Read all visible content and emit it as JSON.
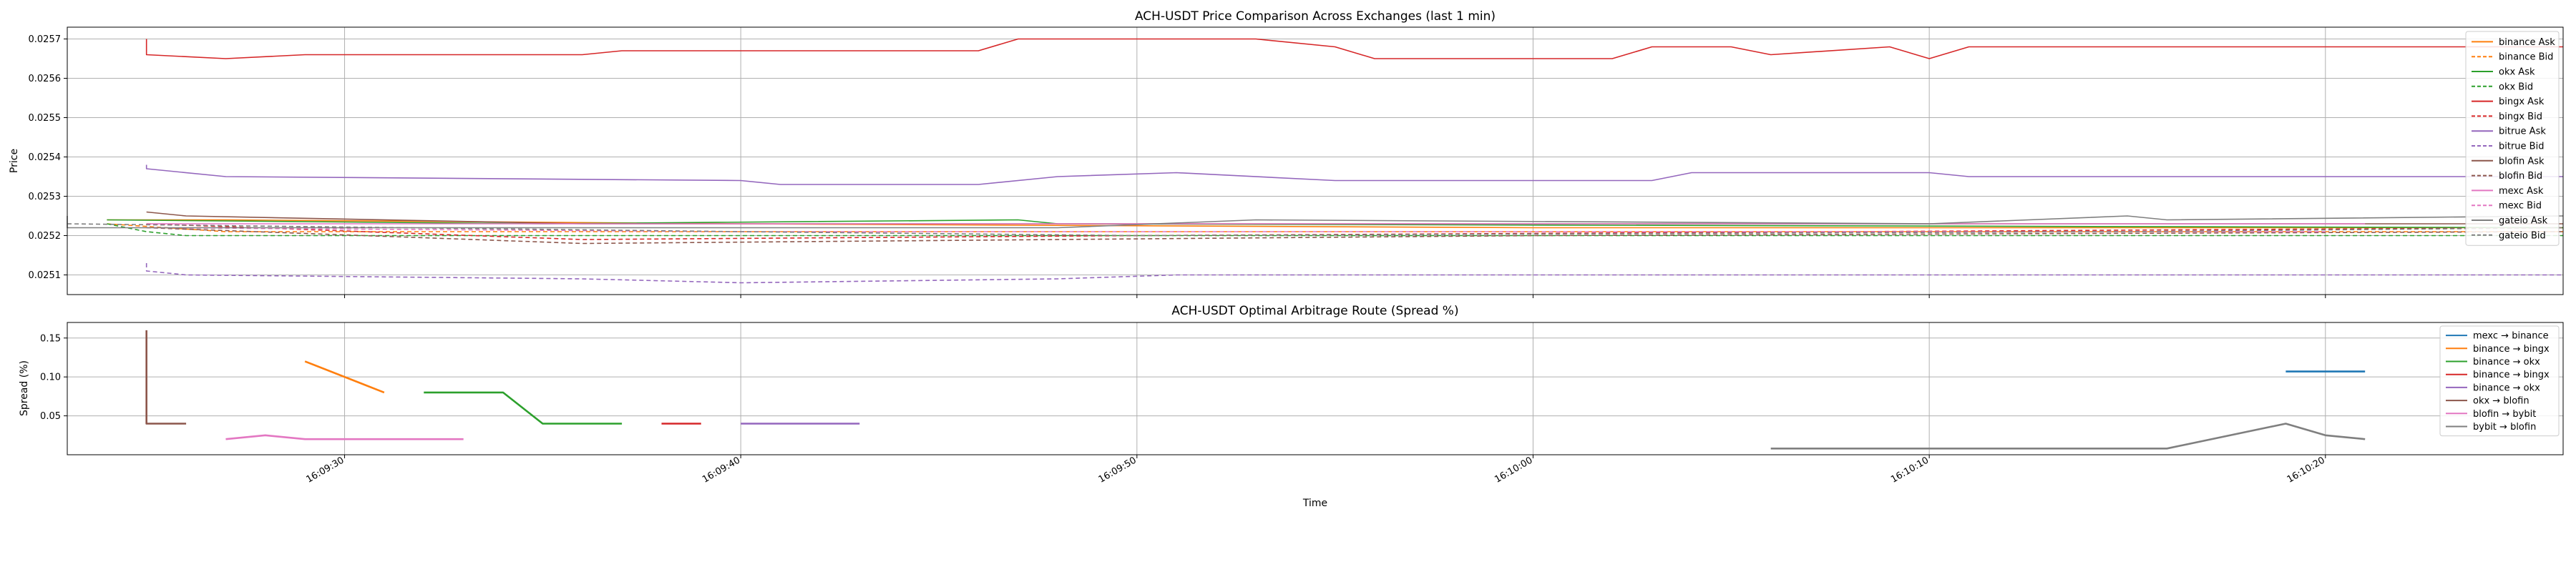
{
  "figure": {
    "x_axis_label": "Time"
  },
  "time_axis": {
    "ticks": [
      "16:09:30",
      "16:09:40",
      "16:09:50",
      "16:10:00",
      "16:10:10",
      "16:10:20"
    ],
    "range": [
      "16:09:23",
      "16:10:26"
    ]
  },
  "chart_data": [
    {
      "type": "line",
      "title": "ACH-USDT Price Comparison Across Exchanges (last 1 min)",
      "xlabel": "Time",
      "ylabel": "Price",
      "ylim": [
        0.02505,
        0.02573
      ],
      "yticks": [
        "0.0251",
        "0.0252",
        "0.0253",
        "0.0254",
        "0.0255",
        "0.0256",
        "0.0257"
      ],
      "ytick_values": [
        0.0251,
        0.0252,
        0.0253,
        0.0254,
        0.0255,
        0.0256,
        0.0257
      ],
      "grid": true,
      "legend_position": "right",
      "series": [
        {
          "name": "binance Ask",
          "color": "#ff7f0e",
          "dash": false,
          "points": [
            [
              "16:09:24",
              0.02524
            ],
            [
              "16:09:27",
              0.02524
            ],
            [
              "16:09:40",
              0.02523
            ],
            [
              "16:10:00",
              0.02522
            ],
            [
              "16:10:26",
              0.02522
            ]
          ]
        },
        {
          "name": "binance Bid",
          "color": "#ff7f0e",
          "dash": true,
          "points": [
            [
              "16:09:24",
              0.02523
            ],
            [
              "16:09:27",
              0.02521
            ],
            [
              "16:09:37",
              0.02521
            ],
            [
              "16:10:00",
              0.02521
            ],
            [
              "16:10:26",
              0.02521
            ]
          ]
        },
        {
          "name": "okx Ask",
          "color": "#2ca02c",
          "dash": false,
          "points": [
            [
              "16:09:24",
              0.02524
            ],
            [
              "16:09:35",
              0.02523
            ],
            [
              "16:09:47",
              0.02524
            ],
            [
              "16:09:48",
              0.02523
            ],
            [
              "16:10:26",
              0.02522
            ]
          ]
        },
        {
          "name": "okx Bid",
          "color": "#2ca02c",
          "dash": true,
          "points": [
            [
              "16:09:24",
              0.02523
            ],
            [
              "16:09:25",
              0.02521
            ],
            [
              "16:09:26",
              0.0252
            ],
            [
              "16:09:40",
              0.0252
            ],
            [
              "16:10:00",
              0.0252
            ],
            [
              "16:10:26",
              0.0252
            ]
          ]
        },
        {
          "name": "bingx Ask",
          "color": "#d62728",
          "dash": false,
          "points": [
            [
              "16:09:25",
              0.0257
            ],
            [
              "16:09:25",
              0.02566
            ],
            [
              "16:09:27",
              0.02565
            ],
            [
              "16:09:29",
              0.02566
            ],
            [
              "16:09:36",
              0.02566
            ],
            [
              "16:09:37",
              0.02567
            ],
            [
              "16:09:46",
              0.02567
            ],
            [
              "16:09:47",
              0.0257
            ],
            [
              "16:09:53",
              0.0257
            ],
            [
              "16:09:55",
              0.02568
            ],
            [
              "16:09:56",
              0.02565
            ],
            [
              "16:10:02",
              0.02565
            ],
            [
              "16:10:03",
              0.02568
            ],
            [
              "16:10:05",
              0.02568
            ],
            [
              "16:10:06",
              0.02566
            ],
            [
              "16:10:09",
              0.02568
            ],
            [
              "16:10:10",
              0.02565
            ],
            [
              "16:10:11",
              0.02568
            ],
            [
              "16:10:26",
              0.02568
            ]
          ]
        },
        {
          "name": "bingx Bid",
          "color": "#d62728",
          "dash": true,
          "points": [
            [
              "16:09:25",
              0.02523
            ],
            [
              "16:09:36",
              0.02519
            ],
            [
              "16:09:50",
              0.0252
            ],
            [
              "16:10:26",
              0.02522
            ]
          ]
        },
        {
          "name": "bitrue Ask",
          "color": "#9467bd",
          "dash": false,
          "points": [
            [
              "16:09:25",
              0.02538
            ],
            [
              "16:09:25",
              0.02537
            ],
            [
              "16:09:27",
              0.02535
            ],
            [
              "16:09:40",
              0.02534
            ],
            [
              "16:09:41",
              0.02533
            ],
            [
              "16:09:46",
              0.02533
            ],
            [
              "16:09:48",
              0.02535
            ],
            [
              "16:09:51",
              0.02536
            ],
            [
              "16:09:55",
              0.02534
            ],
            [
              "16:10:03",
              0.02534
            ],
            [
              "16:10:04",
              0.02536
            ],
            [
              "16:10:10",
              0.02536
            ],
            [
              "16:10:11",
              0.02535
            ],
            [
              "16:10:26",
              0.02535
            ]
          ]
        },
        {
          "name": "bitrue Bid",
          "color": "#9467bd",
          "dash": true,
          "points": [
            [
              "16:09:25",
              0.02513
            ],
            [
              "16:09:25",
              0.02511
            ],
            [
              "16:09:26",
              0.0251
            ],
            [
              "16:09:36",
              0.02509
            ],
            [
              "16:09:40",
              0.02508
            ],
            [
              "16:09:48",
              0.02509
            ],
            [
              "16:09:51",
              0.0251
            ],
            [
              "16:10:04",
              0.0251
            ],
            [
              "16:10:26",
              0.0251
            ]
          ]
        },
        {
          "name": "blofin Ask",
          "color": "#8c564b",
          "dash": false,
          "points": [
            [
              "16:09:25",
              0.02526
            ],
            [
              "16:09:26",
              0.02525
            ],
            [
              "16:09:36",
              0.02523
            ],
            [
              "16:10:26",
              0.02523
            ]
          ]
        },
        {
          "name": "blofin Bid",
          "color": "#8c564b",
          "dash": true,
          "points": [
            [
              "16:09:25",
              0.02522
            ],
            [
              "16:09:36",
              0.02518
            ],
            [
              "16:10:00",
              0.0252
            ],
            [
              "16:10:26",
              0.02521
            ]
          ]
        },
        {
          "name": "mexc Ask",
          "color": "#e377c2",
          "dash": false,
          "points": [
            [
              "16:09:25",
              0.02523
            ],
            [
              "16:09:30",
              0.02523
            ],
            [
              "16:10:00",
              0.02523
            ],
            [
              "16:10:21",
              0.02523
            ]
          ]
        },
        {
          "name": "mexc Bid",
          "color": "#e377c2",
          "dash": true,
          "points": [
            [
              "16:09:25",
              0.02522
            ],
            [
              "16:09:40",
              0.02521
            ],
            [
              "16:10:20",
              0.02521
            ]
          ]
        },
        {
          "name": "gateio Ask",
          "color": "#7f7f7f",
          "dash": false,
          "points": [
            [
              "16:09:23",
              0.02525
            ],
            [
              "16:09:23",
              0.02522
            ],
            [
              "16:09:36",
              0.02522
            ],
            [
              "16:09:48",
              0.02522
            ],
            [
              "16:09:53",
              0.02524
            ],
            [
              "16:10:10",
              0.02523
            ],
            [
              "16:10:15",
              0.02525
            ],
            [
              "16:10:16",
              0.02524
            ],
            [
              "16:10:26",
              0.02525
            ]
          ]
        },
        {
          "name": "gateio Bid",
          "color": "#7f7f7f",
          "dash": true,
          "points": [
            [
              "16:09:23",
              0.02523
            ],
            [
              "16:09:40",
              0.02521
            ],
            [
              "16:09:50",
              0.0252
            ],
            [
              "16:10:15",
              0.02521
            ],
            [
              "16:10:26",
              0.02522
            ]
          ]
        }
      ]
    },
    {
      "type": "line",
      "title": "ACH-USDT Optimal Arbitrage Route (Spread %)",
      "xlabel": "Time",
      "ylabel": "Spread (%)",
      "ylim": [
        0.0,
        0.17
      ],
      "yticks": [
        "0.05",
        "0.10",
        "0.15"
      ],
      "ytick_values": [
        0.05,
        0.1,
        0.15
      ],
      "grid": true,
      "legend_position": "top-right",
      "series": [
        {
          "name": "mexc → binance",
          "color": "#1f77b4",
          "dash": false,
          "points": [
            [
              "16:10:19",
              0.107
            ],
            [
              "16:10:21",
              0.107
            ]
          ]
        },
        {
          "name": "binance → bingx",
          "color": "#ff7f0e",
          "dash": false,
          "points": [
            [
              "16:09:29",
              0.12
            ],
            [
              "16:09:31",
              0.08
            ]
          ]
        },
        {
          "name": "binance → okx",
          "color": "#2ca02c",
          "dash": false,
          "points": [
            [
              "16:09:32",
              0.08
            ],
            [
              "16:09:34",
              0.08
            ],
            [
              "16:09:35",
              0.04
            ],
            [
              "16:09:37",
              0.04
            ]
          ]
        },
        {
          "name": "binance → bingx",
          "color": "#d62728",
          "dash": false,
          "points": [
            [
              "16:09:38",
              0.04
            ],
            [
              "16:09:39",
              0.04
            ]
          ]
        },
        {
          "name": "binance → okx",
          "color": "#9467bd",
          "dash": false,
          "points": [
            [
              "16:09:40",
              0.04
            ],
            [
              "16:09:43",
              0.04
            ]
          ]
        },
        {
          "name": "okx → blofin",
          "color": "#8c564b",
          "dash": false,
          "points": [
            [
              "16:09:25",
              0.16
            ],
            [
              "16:09:25",
              0.04
            ],
            [
              "16:09:26",
              0.04
            ]
          ]
        },
        {
          "name": "blofin → bybit",
          "color": "#e377c2",
          "dash": false,
          "points": [
            [
              "16:09:27",
              0.02
            ],
            [
              "16:09:28",
              0.025
            ],
            [
              "16:09:29",
              0.02
            ],
            [
              "16:09:33",
              0.02
            ]
          ]
        },
        {
          "name": "bybit → blofin",
          "color": "#7f7f7f",
          "dash": false,
          "points": [
            [
              "16:10:06",
              0.008
            ],
            [
              "16:10:16",
              0.008
            ],
            [
              "16:10:19",
              0.04
            ],
            [
              "16:10:20",
              0.025
            ],
            [
              "16:10:21",
              0.02
            ]
          ]
        }
      ]
    }
  ]
}
